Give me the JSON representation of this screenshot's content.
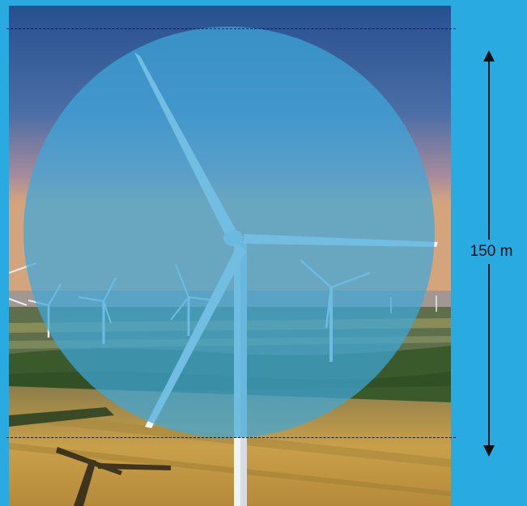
{
  "measurement": {
    "label": "150 m"
  },
  "colors": {
    "background": "#29abe2",
    "overlay_circle": "#3fa7da",
    "sky_top": "#27508f",
    "field": "#c9a04a",
    "forest": "#3a5a2c",
    "annotation": "#111111"
  }
}
